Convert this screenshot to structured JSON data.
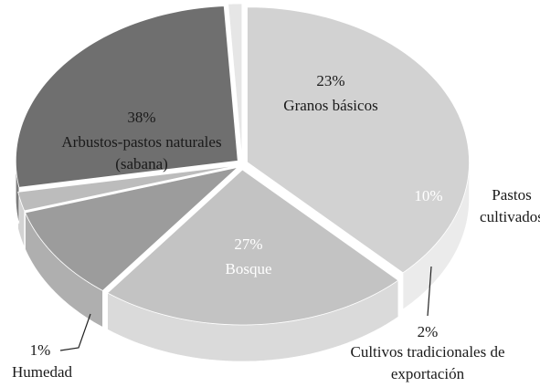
{
  "chart_data": {
    "type": "pie3d",
    "categories": [
      "Arbustos-pastos naturales (sabana)",
      "Granos básicos",
      "Pastos cultivados",
      "Cultivos tradicionales de exportación",
      "Bosque",
      "Humedad"
    ],
    "values": [
      38,
      23,
      10,
      2,
      27,
      1
    ],
    "value_labels": [
      "38%",
      "23%",
      "10%",
      "2%",
      "27%",
      "1%"
    ],
    "colors": [
      "#d2d2d2",
      "#c3c3c3",
      "#9c9c9c",
      "#bcbcbc",
      "#6f6f6f",
      "#e6e6e6"
    ]
  }
}
